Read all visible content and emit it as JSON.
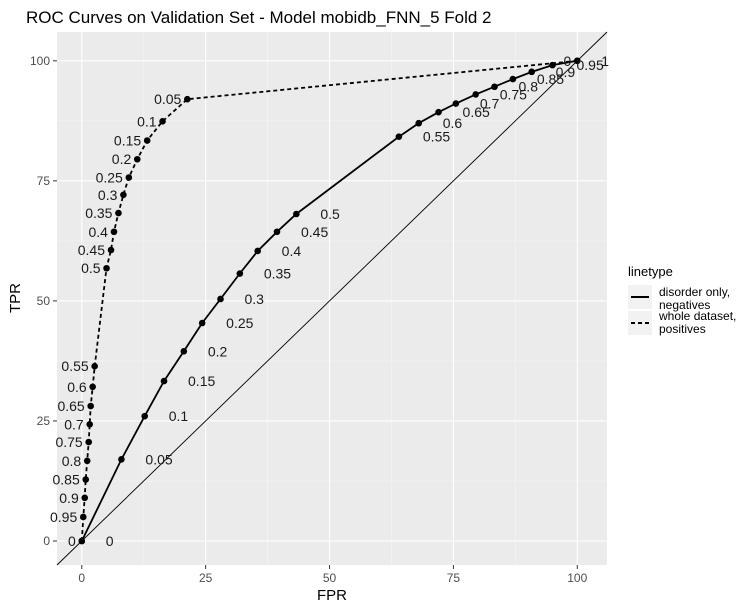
{
  "chart_data": {
    "type": "line",
    "title": "ROC Curves on Validation Set - Model mobidb_FNN_5 Fold 2",
    "xlabel": "FPR",
    "ylabel": "TPR",
    "xlim": [
      -5,
      106
    ],
    "ylim": [
      -5,
      106
    ],
    "x_ticks": [
      0,
      25,
      50,
      75,
      100
    ],
    "y_ticks": [
      0,
      25,
      50,
      75,
      100
    ],
    "grid": true,
    "diagonal_reference": true,
    "legend": {
      "title": "linetype",
      "placement": "right",
      "entries": [
        {
          "label_lines": [
            "disorder only,",
            "negatives"
          ],
          "linetype": "solid"
        },
        {
          "label_lines": [
            "whole dataset,",
            "positives"
          ],
          "linetype": "dashed"
        }
      ]
    },
    "series": [
      {
        "linetype": "solid",
        "points": [
          {
            "label": "0",
            "x": 0,
            "y": 0
          },
          {
            "label": "0.05",
            "x": 8,
            "y": 17
          },
          {
            "label": "0.1",
            "x": 12.7,
            "y": 26
          },
          {
            "label": "0.15",
            "x": 16.6,
            "y": 33.3
          },
          {
            "label": "0.2",
            "x": 20.6,
            "y": 39.5
          },
          {
            "label": "0.25",
            "x": 24.3,
            "y": 45.4
          },
          {
            "label": "0.3",
            "x": 28,
            "y": 50.4
          },
          {
            "label": "0.35",
            "x": 31.9,
            "y": 55.7
          },
          {
            "label": "0.4",
            "x": 35.5,
            "y": 60.4
          },
          {
            "label": "0.45",
            "x": 39.4,
            "y": 64.4
          },
          {
            "label": "0.5",
            "x": 43.3,
            "y": 68.1
          },
          {
            "label": "0.55",
            "x": 64,
            "y": 84.2
          },
          {
            "label": "0.6",
            "x": 68,
            "y": 87
          },
          {
            "label": "0.65",
            "x": 72,
            "y": 89.3
          },
          {
            "label": "0.7",
            "x": 75.5,
            "y": 91.1
          },
          {
            "label": "0.75",
            "x": 79.5,
            "y": 93
          },
          {
            "label": "0.8",
            "x": 83.3,
            "y": 94.6
          },
          {
            "label": "0.85",
            "x": 87,
            "y": 96.2
          },
          {
            "label": "0.9",
            "x": 90.8,
            "y": 97.7
          },
          {
            "label": "0.95",
            "x": 95,
            "y": 99.1
          },
          {
            "label": "1",
            "x": 100,
            "y": 100
          }
        ]
      },
      {
        "linetype": "dashed",
        "points": [
          {
            "label": "0",
            "x": 0,
            "y": 0
          },
          {
            "label": "0.95",
            "x": 0.3,
            "y": 5
          },
          {
            "label": "0.9",
            "x": 0.6,
            "y": 9
          },
          {
            "label": "0.85",
            "x": 0.8,
            "y": 12.8
          },
          {
            "label": "0.8",
            "x": 1.1,
            "y": 16.7
          },
          {
            "label": "0.75",
            "x": 1.4,
            "y": 20.6
          },
          {
            "label": "0.7",
            "x": 1.6,
            "y": 24.3
          },
          {
            "label": "0.65",
            "x": 1.8,
            "y": 28.1
          },
          {
            "label": "0.6",
            "x": 2.2,
            "y": 32.1
          },
          {
            "label": "0.55",
            "x": 2.6,
            "y": 36.4
          },
          {
            "label": "0.5",
            "x": 5,
            "y": 56.8
          },
          {
            "label": "0.45",
            "x": 5.9,
            "y": 60.6
          },
          {
            "label": "0.4",
            "x": 6.5,
            "y": 64.4
          },
          {
            "label": "0.35",
            "x": 7.4,
            "y": 68.3
          },
          {
            "label": "0.3",
            "x": 8.4,
            "y": 72.1
          },
          {
            "label": "0.25",
            "x": 9.5,
            "y": 75.7
          },
          {
            "label": "0.2",
            "x": 11.2,
            "y": 79.5
          },
          {
            "label": "0.15",
            "x": 13.2,
            "y": 83.4
          },
          {
            "label": "0.1",
            "x": 16.3,
            "y": 87.4
          },
          {
            "label": "0.05",
            "x": 21.3,
            "y": 92
          },
          {
            "label": "0",
            "x": 100,
            "y": 100
          }
        ]
      }
    ]
  }
}
